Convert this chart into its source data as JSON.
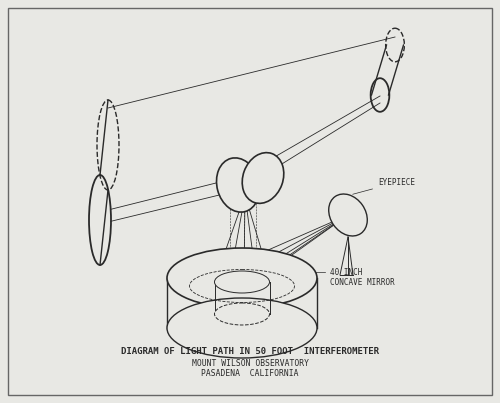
{
  "title_line1": "DIAGRAM OF LIGHT PATH IN 50 FOOT  INTERFEROMETER",
  "title_line2": "MOUNT WILSON OBSERVATORY",
  "title_line3": "PASADENA  CALIFORNIA",
  "bg_color": "#e8e8e4",
  "border_color": "#666666",
  "draw_color": "#2a2a2a",
  "title_fontsize": 6.5,
  "subtitle_fontsize": 5.8,
  "label_eyepiece": "EYEPIECE",
  "label_mirror_1": "40 INCH",
  "label_mirror_2": "CONCAVE MIRROR"
}
